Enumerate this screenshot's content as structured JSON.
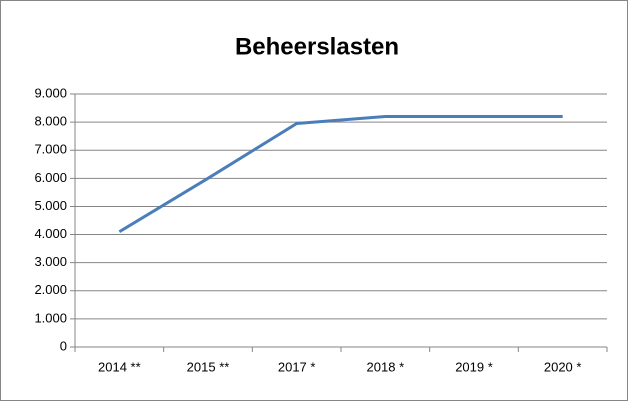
{
  "chart_data": {
    "type": "line",
    "title": "Beheerslasten",
    "categories": [
      "2014 **",
      "2015 **",
      "2017 *",
      "2018 *",
      "2019 *",
      "2020 *"
    ],
    "series": [
      {
        "name": "Beheerslasten",
        "color": "#4a7ebb",
        "values": [
          4100,
          6000,
          7950,
          8200,
          8200,
          8200
        ]
      }
    ],
    "ylim": [
      0,
      9000
    ],
    "yticks": [
      0,
      {
        "value": 1000,
        "label": "1.000"
      },
      {
        "value": 2000,
        "label": "2.000"
      },
      {
        "value": 3000,
        "label": "3.000"
      },
      {
        "value": 4000,
        "label": "4.000"
      },
      {
        "value": 5000,
        "label": "5.000"
      },
      {
        "value": 6000,
        "label": "6.000"
      },
      {
        "value": 7000,
        "label": "7.000"
      },
      {
        "value": 8000,
        "label": "8.000"
      },
      {
        "value": 9000,
        "label": "9.000"
      }
    ],
    "grid": true
  }
}
